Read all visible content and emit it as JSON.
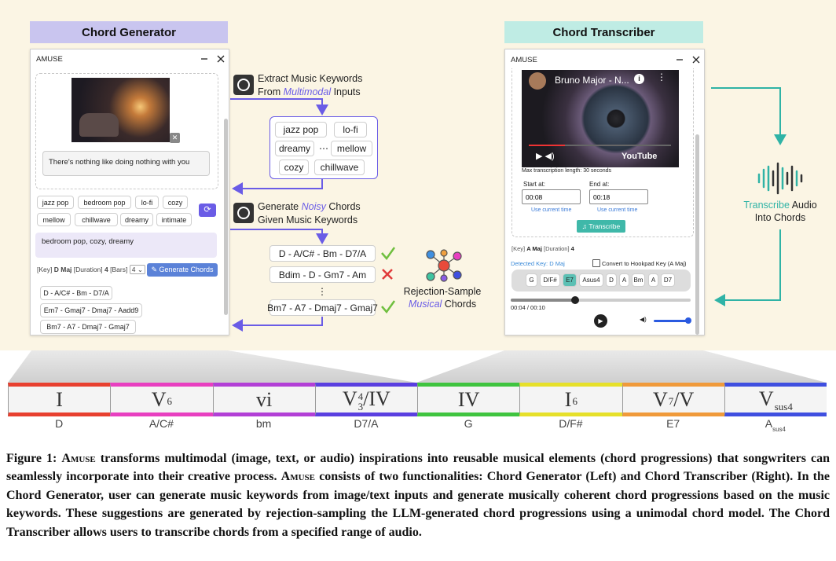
{
  "generator": {
    "header": "Chord Generator",
    "window_title": "AMUSE",
    "text_input": "There's nothing like doing nothing with you",
    "keywords": [
      "jazz pop",
      "bedroom pop",
      "lo-fi",
      "cozy",
      "mellow",
      "chillwave",
      "dreamy",
      "intimate"
    ],
    "selected_keywords": "bedroom pop, cozy, dreamy",
    "key_label": "[Key]",
    "key": "D Maj",
    "duration_label": "[Duration]",
    "duration": "4",
    "bars_label": "[Bars]",
    "bars": "4",
    "button": "Generate Chords",
    "results": [
      "D - A/C# - Bm - D7/A",
      "Em7 - Gmaj7 - Dmaj7 - Aadd9",
      "Bm7 - A7 - Dmaj7 - Gmaj7"
    ]
  },
  "pipeline": {
    "extract": {
      "line1": "Extract Music Keywords",
      "pre": "From",
      "highlight": "Multimodal",
      "post": "Inputs"
    },
    "keywords": [
      "jazz pop",
      "lo-fi",
      "dreamy",
      "⋯",
      "mellow",
      "cozy",
      "chillwave"
    ],
    "generate": {
      "pre": "Generate",
      "highlight": "Noisy",
      "post": "Chords",
      "line2": "Given Music Keywords"
    },
    "noisy_chords": [
      "D - A/C# - Bm - D7/A",
      "Bdim - D - Gm7 - Am",
      "⋮",
      "Bm7 - A7 - Dmaj7 - Gmaj7"
    ],
    "reject": {
      "line1": "Rejection-Sample",
      "highlight": "Musical",
      "post": "Chords"
    }
  },
  "transcriber": {
    "header": "Chord Transcriber",
    "window_title": "AMUSE",
    "video_title": "Bruno Major - N...",
    "video_brand": "YouTube",
    "max_length": "Max transcription length: 30 seconds",
    "start_label": "Start at:",
    "start": "00:08",
    "end_label": "End at:",
    "end": "00:18",
    "use_current": [
      "Use current time",
      "Use current time"
    ],
    "button": "Transcribe",
    "key_label": "[Key]",
    "key": "A Maj",
    "duration_label": "[Duration]",
    "duration": "4",
    "detected_key": "Detected Key: D Maj",
    "convert": "Convert to Hookpad Key (A Maj)",
    "chords": [
      "G",
      "D/F#",
      "E7",
      "Asus4",
      "D",
      "A",
      "Bm",
      "A",
      "D7"
    ],
    "time": "00:04 / 00:10"
  },
  "transcribe_step": {
    "highlight": "Transcribe",
    "post": "Audio",
    "line2": "Into Chords"
  },
  "strip": [
    {
      "numeral": "I",
      "chord": "D",
      "color": "#e8402f"
    },
    {
      "numeral": "V",
      "sup": "6",
      "chord": "A/C#",
      "color": "#e83fc0"
    },
    {
      "numeral": "vi",
      "chord": "bm",
      "color": "#b23fd6"
    },
    {
      "numeral": "V",
      "sup": "4",
      "sub": "3",
      "suffix": "/IV",
      "chord": "D7/A",
      "color": "#5a3fe0"
    },
    {
      "numeral": "IV",
      "chord": "G",
      "color": "#3fc43f"
    },
    {
      "numeral": "I",
      "sup": "6",
      "chord": "D/F#",
      "color": "#e6e02a"
    },
    {
      "numeral": "V",
      "sup": "7",
      "suffix": "/V",
      "chord": "E7",
      "color": "#f09a3a"
    },
    {
      "numeral": "V",
      "sub": "sus4",
      "chord": "A",
      "chord_sub": "sus4",
      "color": "#3f4fe0"
    }
  ],
  "caption": {
    "label": "Figure 1:",
    "parts": [
      "Amuse",
      "transforms multimodal (image, text, or audio) inspirations into reusable musical elements (chord progressions) that songwriters can seamlessly incorporate into their creative process.",
      "Amuse",
      "consists of two functionalities: Chord Generator (Left) and Chord Transcriber (Right). In the Chord Generator, user can generate music keywords from image/text inputs and generate musically coherent chord progressions based on the music keywords. These suggestions are generated by rejection-sampling the LLM-generated chord progressions using a unimodal chord model. The Chord Transcriber allows users to transcribe chords from a specified range of audio."
    ]
  }
}
